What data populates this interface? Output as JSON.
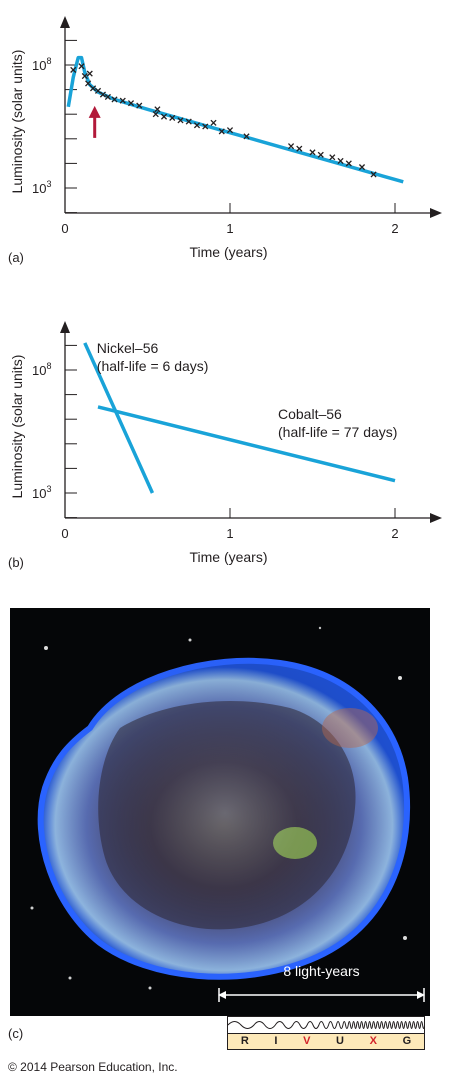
{
  "chart_data": [
    {
      "type": "scatter",
      "panel_label": "(a)",
      "xlabel": "Time (years)",
      "ylabel": "Luminosity (solar units)",
      "x_ticks": [
        "0",
        "1",
        "2"
      ],
      "y_ticks": [
        "10^3",
        "10^8"
      ],
      "y_scale": "log",
      "xlim": [
        0,
        2.2
      ],
      "ylim_log10": [
        2,
        9.5
      ],
      "grid": false,
      "series": [
        {
          "kind": "line",
          "color": "#19a3d8",
          "points": [
            [
              0.02,
              6.3
            ],
            [
              0.05,
              7.5
            ],
            [
              0.08,
              8.3
            ],
            [
              0.1,
              8.3
            ],
            [
              0.12,
              7.7
            ],
            [
              0.15,
              7.2
            ],
            [
              0.2,
              6.9
            ],
            [
              0.3,
              6.6
            ],
            [
              0.5,
              6.2
            ],
            [
              1.0,
              5.25
            ],
            [
              1.5,
              4.3
            ],
            [
              2.05,
              3.25
            ]
          ]
        },
        {
          "kind": "points",
          "marker": "x",
          "points": [
            [
              0.05,
              7.8
            ],
            [
              0.1,
              7.95
            ],
            [
              0.12,
              7.55
            ],
            [
              0.14,
              7.25
            ],
            [
              0.15,
              7.65
            ],
            [
              0.17,
              7.05
            ],
            [
              0.2,
              6.95
            ],
            [
              0.23,
              6.8
            ],
            [
              0.26,
              6.7
            ],
            [
              0.3,
              6.6
            ],
            [
              0.35,
              6.55
            ],
            [
              0.4,
              6.45
            ],
            [
              0.45,
              6.35
            ],
            [
              0.55,
              6.0
            ],
            [
              0.56,
              6.2
            ],
            [
              0.6,
              5.9
            ],
            [
              0.65,
              5.85
            ],
            [
              0.7,
              5.75
            ],
            [
              0.75,
              5.7
            ],
            [
              0.8,
              5.55
            ],
            [
              0.85,
              5.5
            ],
            [
              0.9,
              5.65
            ],
            [
              0.95,
              5.3
            ],
            [
              1.0,
              5.35
            ],
            [
              1.1,
              5.1
            ],
            [
              1.37,
              4.7
            ],
            [
              1.42,
              4.6
            ],
            [
              1.5,
              4.45
            ],
            [
              1.55,
              4.35
            ],
            [
              1.62,
              4.25
            ],
            [
              1.67,
              4.1
            ],
            [
              1.72,
              4.0
            ],
            [
              1.8,
              3.85
            ],
            [
              1.87,
              3.55
            ]
          ]
        }
      ],
      "annotation": {
        "kind": "arrow",
        "color": "#b2193a",
        "points_to": [
          0.18,
          6.5
        ]
      }
    },
    {
      "type": "line",
      "panel_label": "(b)",
      "xlabel": "Time (years)",
      "ylabel": "Luminosity (solar units)",
      "x_ticks": [
        "0",
        "1",
        "2"
      ],
      "y_ticks": [
        "10^3",
        "10^8"
      ],
      "y_scale": "log",
      "xlim": [
        0,
        2.2
      ],
      "ylim_log10": [
        2,
        9.5
      ],
      "grid": false,
      "series": [
        {
          "color": "#19a3d8",
          "label_line1": "Nickel–56",
          "label_line2": "(half-life = 6 days)",
          "points": [
            [
              0.12,
              9.1
            ],
            [
              0.53,
              3.0
            ]
          ]
        },
        {
          "color": "#19a3d8",
          "label_line1": "Cobalt–56",
          "label_line2": "(half-life = 77 days)",
          "points": [
            [
              0.2,
              6.5
            ],
            [
              2.0,
              3.5
            ]
          ]
        }
      ]
    }
  ],
  "panel_c": {
    "panel_label": "(c)",
    "scale_label": "8 light-years",
    "spectrum_letters": [
      {
        "letter": "R",
        "color": "#231f20"
      },
      {
        "letter": "I",
        "color": "#231f20"
      },
      {
        "letter": "V",
        "color": "#d2232a"
      },
      {
        "letter": "U",
        "color": "#231f20"
      },
      {
        "letter": "X",
        "color": "#d2232a"
      },
      {
        "letter": "G",
        "color": "#231f20"
      }
    ]
  },
  "copyright": "© 2014 Pearson Education, Inc."
}
